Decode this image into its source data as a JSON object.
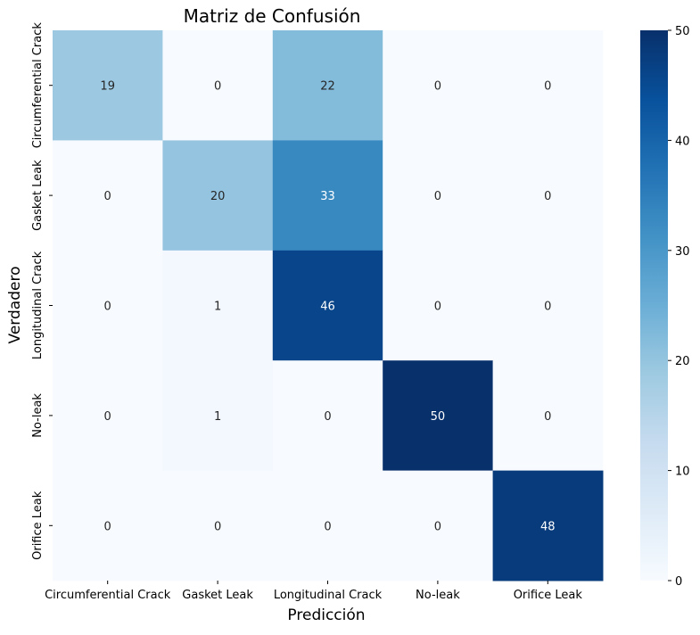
{
  "chart_data": {
    "type": "heatmap",
    "title": "Matriz de Confusión",
    "xlabel": "Predicción",
    "ylabel": "Verdadero",
    "x_categories": [
      "Circumferential Crack",
      "Gasket Leak",
      "Longitudinal Crack",
      "No-leak",
      "Orifice Leak"
    ],
    "y_categories": [
      "Circumferential Crack",
      "Gasket Leak",
      "Longitudinal Crack",
      "No-leak",
      "Orifice Leak"
    ],
    "values": [
      [
        19,
        0,
        22,
        0,
        0
      ],
      [
        0,
        20,
        33,
        0,
        0
      ],
      [
        0,
        1,
        46,
        0,
        0
      ],
      [
        0,
        1,
        0,
        50,
        0
      ],
      [
        0,
        0,
        0,
        0,
        48
      ]
    ],
    "colorbar": {
      "min": 0,
      "max": 50,
      "ticks": [
        0,
        10,
        20,
        30,
        40,
        50
      ]
    },
    "colormap": "Blues"
  }
}
